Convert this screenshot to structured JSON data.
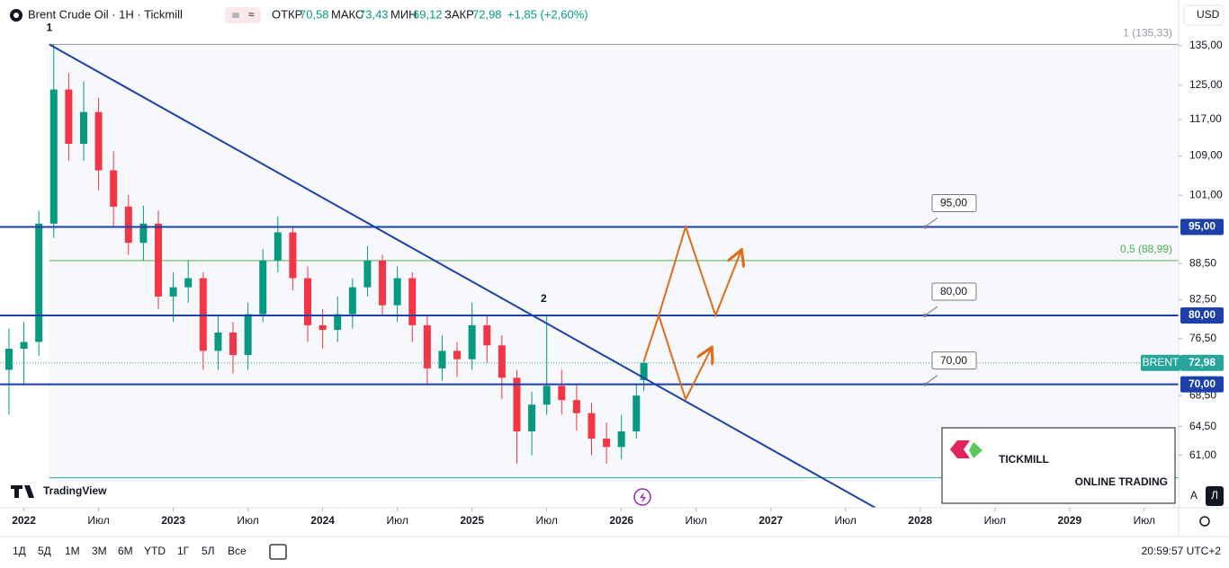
{
  "header": {
    "symbol": "Brent Crude Oil · 1H · Tickmill",
    "ohlc": [
      {
        "label": "ОТКР",
        "value": "70,58"
      },
      {
        "label": "МАКС",
        "value": "73,43"
      },
      {
        "label": "МИН",
        "value": "69,12"
      },
      {
        "label": "ЗАКР",
        "value": "72,98"
      }
    ],
    "change": "+1,85 (+2,60%)"
  },
  "toolbar": {
    "periods": [
      "1Д",
      "5Д",
      "1М",
      "3М",
      "6М",
      "YTD",
      "1Г",
      "5Л",
      "Все"
    ],
    "time": "20:59:57 UTC+2"
  },
  "scale_controls": {
    "currency": "USD",
    "auto": "A",
    "log": "Л"
  },
  "logos": {
    "tradingview": "TradingView",
    "broker": "TICKMILL",
    "broker_tagline": "ONLINE TRADING"
  },
  "chart_data": {
    "type": "candlestick",
    "log_scale": true,
    "x": [
      2021.9,
      2022.0,
      2022.1,
      2022.2,
      2022.3,
      2022.4,
      2022.5,
      2022.6,
      2022.7,
      2022.8,
      2022.9,
      2023.0,
      2023.1,
      2023.2,
      2023.3,
      2023.4,
      2023.5,
      2023.6,
      2023.7,
      2023.8,
      2023.9,
      2024.0,
      2024.1,
      2024.2,
      2024.3,
      2024.4,
      2024.5,
      2024.6,
      2024.7,
      2024.8,
      2024.9,
      2025.0,
      2025.1,
      2025.2,
      2025.3,
      2025.4,
      2025.5,
      2025.6,
      2025.7,
      2025.8,
      2025.9,
      2026.0,
      2026.1,
      2026.15
    ],
    "open": [
      72,
      75,
      76,
      95.6,
      124,
      111.6,
      118.7,
      106,
      98.8,
      92.1,
      95.6,
      83,
      84.5,
      86,
      74.7,
      77.4,
      74.1,
      80.2,
      89,
      94,
      86,
      78.5,
      77.8,
      80.2,
      84.5,
      89,
      81.6,
      86,
      78.5,
      72.2,
      74.7,
      73.5,
      78.5,
      75.5,
      70.9,
      63.9,
      67.3,
      69.8,
      67.9,
      66.2,
      63,
      62,
      63.9,
      70.58
    ],
    "high": [
      78,
      79,
      98,
      135.33,
      128,
      126,
      122,
      110,
      101,
      99,
      98,
      87,
      89,
      87,
      80,
      79,
      82,
      91,
      97,
      95,
      88,
      81,
      83,
      86,
      91.5,
      90,
      88,
      87,
      80,
      77,
      76,
      82,
      80,
      77,
      72,
      69,
      80,
      72,
      70,
      67.5,
      65,
      66,
      70,
      73.43
    ],
    "low": [
      66,
      70,
      74,
      93,
      108,
      108,
      102,
      95,
      90,
      89,
      81,
      79,
      82,
      72,
      72,
      71.5,
      72,
      79,
      87,
      84,
      76,
      75,
      76,
      78,
      83,
      80,
      79,
      76,
      70,
      70.5,
      71,
      72,
      73,
      68,
      60,
      61,
      66,
      66,
      64,
      61,
      60,
      60.5,
      63,
      69.12
    ],
    "close": [
      75,
      76,
      95.6,
      124,
      111.6,
      118.7,
      106,
      98.8,
      92.1,
      95.6,
      83,
      84.5,
      86,
      74.7,
      77.4,
      74.1,
      80.2,
      89,
      94,
      86,
      78.5,
      77.8,
      80.2,
      84.5,
      89,
      81.6,
      86,
      78.5,
      72.2,
      74.7,
      73.5,
      78.5,
      75.5,
      70.9,
      63.9,
      67.3,
      69.8,
      67.9,
      66.2,
      63,
      62,
      63.9,
      68.5,
      72.98
    ],
    "up_color": "#089981",
    "down_color": "#f23645",
    "xlim": [
      2021.84,
      2029.73
    ],
    "ylim": [
      55.1,
      147.5
    ],
    "xticks": [
      2022,
      {
        "value": 2022.5,
        "label": "Июл"
      },
      2023,
      {
        "value": 2023.5,
        "label": "Июл"
      },
      2024,
      {
        "value": 2024.5,
        "label": "Июл"
      },
      2025,
      {
        "value": 2025.5,
        "label": "Июл"
      },
      2026,
      {
        "value": 2026.5,
        "label": "Июл"
      },
      2027,
      {
        "value": 2027.5,
        "label": "Июл"
      },
      2028,
      {
        "value": 2028.5,
        "label": "Июл"
      },
      2029,
      {
        "value": 2029.5,
        "label": "Июл"
      }
    ],
    "yticks": [
      {
        "value": 135,
        "label": "135,00"
      },
      {
        "value": 125,
        "label": "125,00"
      },
      {
        "value": 117,
        "label": "117,00"
      },
      {
        "value": 109,
        "label": "109,00"
      },
      {
        "value": 101,
        "label": "101,00"
      },
      {
        "value": 88.5,
        "label": "88,50"
      },
      {
        "value": 82.5,
        "label": "82,50"
      },
      {
        "value": 76.5,
        "label": "76,50"
      },
      {
        "value": 68.5,
        "label": "68,50"
      },
      {
        "value": 64.5,
        "label": "64,50"
      },
      {
        "value": 61,
        "label": "61,00"
      }
    ],
    "levels": [
      {
        "value": 95,
        "label": "95,00"
      },
      {
        "value": 80,
        "label": "80,00"
      },
      {
        "value": 70,
        "label": "70,00"
      }
    ],
    "level_color": "#1c3faa",
    "fib": [
      {
        "value": 135.33,
        "label": "1 (135,33)",
        "color": "#9598a1"
      },
      {
        "value": 88.99,
        "label": "0,5 (88,99)",
        "color": "#4caf50"
      },
      {
        "value": 58.4,
        "color": "#26a69a"
      }
    ],
    "trendline": {
      "x": [
        2022.17,
        2027.7
      ],
      "y": [
        135.33,
        55.1
      ],
      "color": "#1c3faa"
    },
    "projections": [
      {
        "x": [
          2026.15,
          2026.25,
          2026.43,
          2026.63,
          2026.8
        ],
        "y": [
          73.2,
          80,
          95,
          80,
          90.6
        ],
        "color": "#e06c1a"
      },
      {
        "x": [
          2026.25,
          2026.43,
          2026.6
        ],
        "y": [
          80,
          68,
          75
        ],
        "color": "#e06c1a"
      }
    ],
    "annotations": [
      {
        "text": "1",
        "x": 2022.17,
        "y": 135.33
      },
      {
        "text": "2",
        "x": 2025.48,
        "y": 80
      }
    ],
    "last_price": {
      "name": "BRENT",
      "value": 72.98,
      "label": "72,98",
      "color": "#26a69a"
    }
  }
}
